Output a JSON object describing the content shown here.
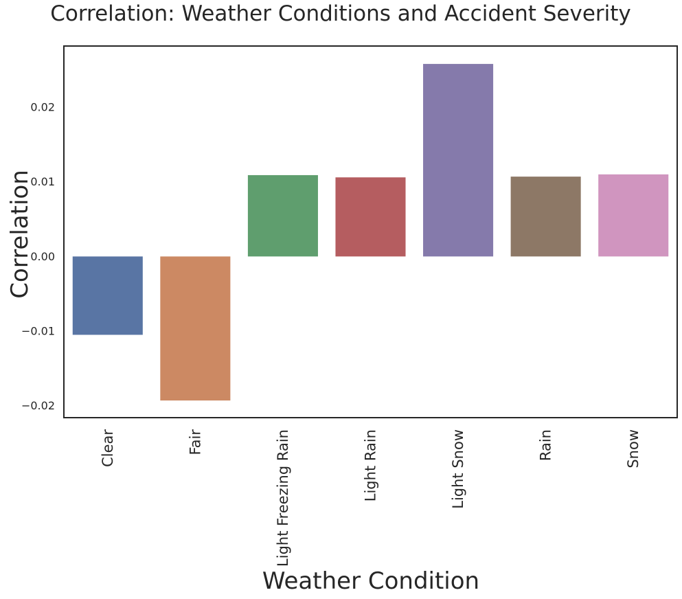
{
  "chart_data": {
    "type": "bar",
    "title": "Correlation: Weather Conditions and Accident Severity",
    "xlabel": "Weather Condition",
    "ylabel": "Correlation",
    "categories": [
      "Clear",
      "Fair",
      "Light Freezing Rain",
      "Light Rain",
      "Light Snow",
      "Rain",
      "Snow"
    ],
    "values": [
      -0.0105,
      -0.0193,
      0.0109,
      0.0106,
      0.0258,
      0.0107,
      0.011
    ],
    "colors": [
      "#5975a4",
      "#cc8963",
      "#5f9e6e",
      "#b55d60",
      "#857aab",
      "#8d7866",
      "#d095bf"
    ],
    "ylim": [
      -0.0216,
      0.0282
    ],
    "yticks": [
      -0.02,
      -0.01,
      0.0,
      0.01,
      0.02
    ],
    "ytick_labels": [
      "−0.02",
      "−0.01",
      "0.00",
      "0.01",
      "0.02"
    ],
    "grid": false,
    "legend": "none"
  }
}
